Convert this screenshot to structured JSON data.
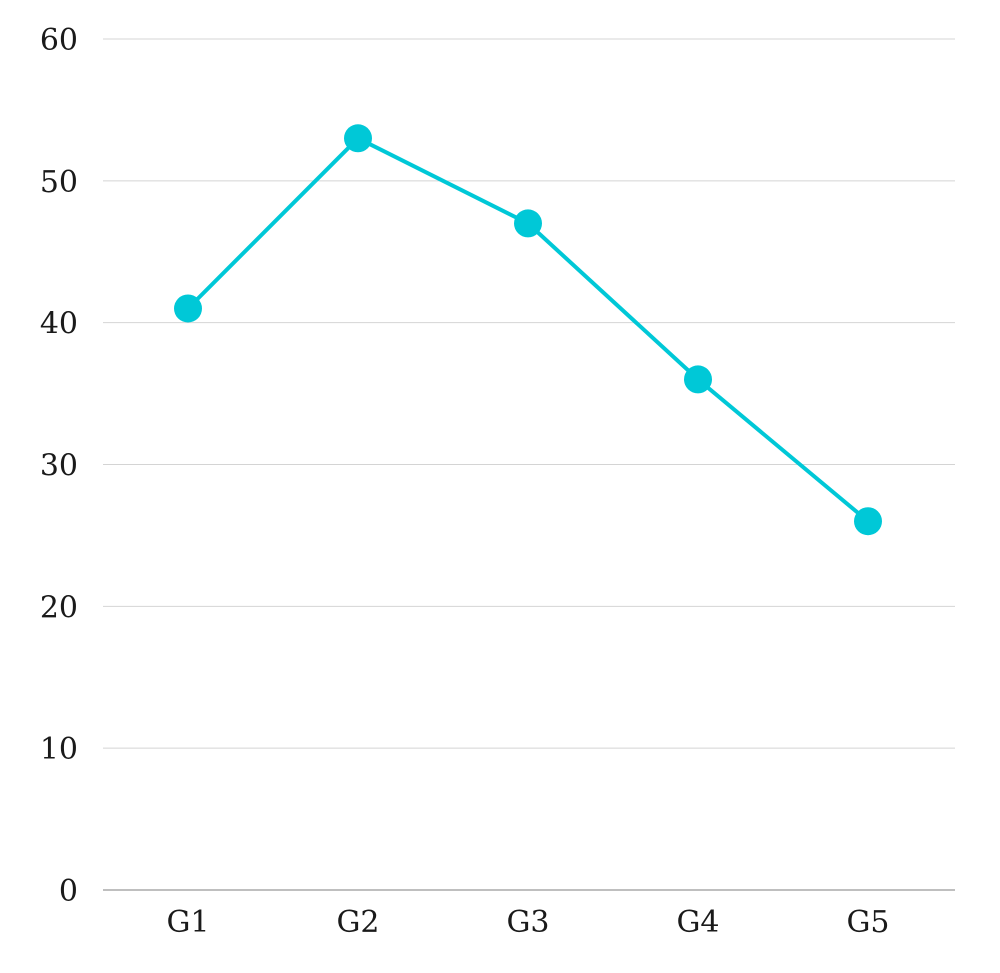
{
  "chart_data": {
    "type": "line",
    "title": "",
    "xlabel": "",
    "ylabel": "",
    "categories": [
      "G1",
      "G2",
      "G3",
      "G4",
      "G5"
    ],
    "series": [
      {
        "values": [
          41,
          53,
          47,
          36,
          26
        ],
        "color": "#00c8d7"
      }
    ],
    "ylim": [
      0,
      60
    ],
    "yticks": [
      0,
      10,
      20,
      30,
      40,
      50,
      60
    ],
    "grid": true,
    "legend": "none"
  }
}
